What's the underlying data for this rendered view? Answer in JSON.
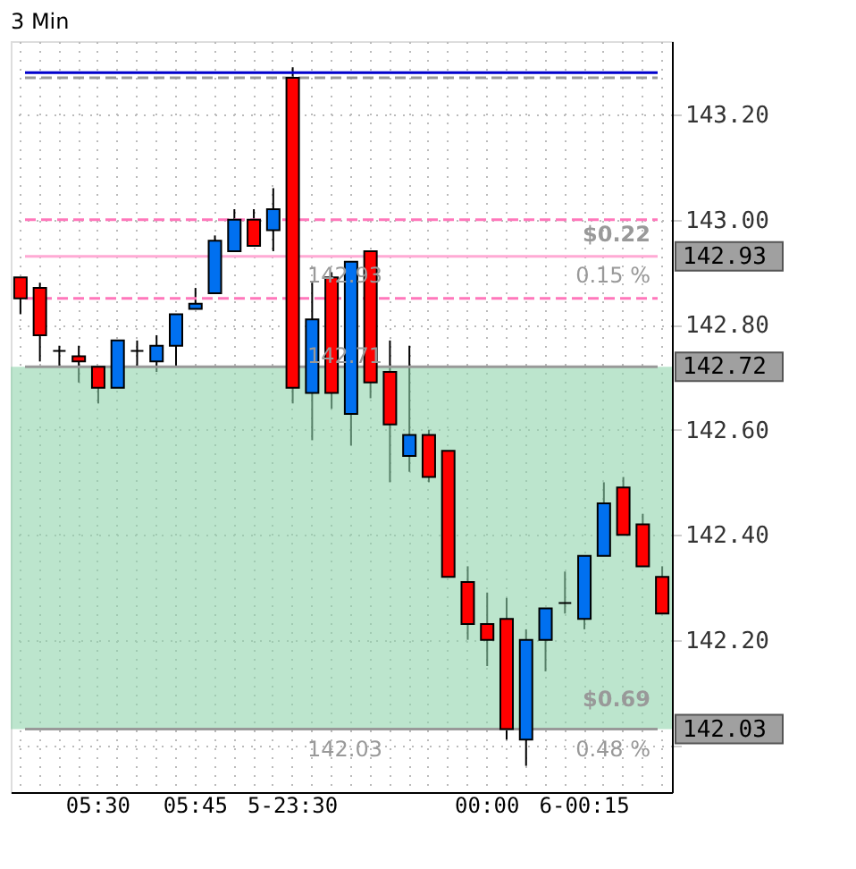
{
  "chart_data": {
    "type": "candlestick",
    "title": "3 Min",
    "categories": [
      null,
      null,
      null,
      null,
      "05:30",
      null,
      null,
      null,
      null,
      "05:45",
      null,
      null,
      null,
      null,
      "5-23:30",
      null,
      null,
      null,
      null,
      null,
      null,
      null,
      null,
      null,
      "00:00",
      null,
      null,
      null,
      null,
      "6-00:15",
      null,
      null,
      null,
      null
    ],
    "ohlc": [
      [
        142.89,
        142.89,
        142.82,
        142.85
      ],
      [
        142.87,
        142.88,
        142.73,
        142.78
      ],
      [
        142.75,
        142.76,
        142.72,
        142.75
      ],
      [
        142.74,
        142.76,
        142.69,
        142.73
      ],
      [
        142.72,
        142.72,
        142.65,
        142.68
      ],
      [
        142.68,
        142.77,
        142.68,
        142.77
      ],
      [
        142.75,
        142.77,
        142.72,
        142.75
      ],
      [
        142.73,
        142.78,
        142.71,
        142.76
      ],
      [
        142.76,
        142.82,
        142.72,
        142.82
      ],
      [
        142.83,
        142.87,
        142.83,
        142.84
      ],
      [
        142.86,
        142.97,
        142.86,
        142.96
      ],
      [
        142.94,
        143.02,
        142.94,
        143.0
      ],
      [
        143.0,
        143.02,
        142.95,
        142.95
      ],
      [
        142.98,
        143.06,
        142.94,
        143.02
      ],
      [
        143.27,
        143.29,
        142.65,
        142.68
      ],
      [
        142.67,
        142.88,
        142.58,
        142.81
      ],
      [
        142.89,
        142.9,
        142.64,
        142.67
      ],
      [
        142.63,
        142.92,
        142.57,
        142.92
      ],
      [
        142.94,
        142.94,
        142.66,
        142.69
      ],
      [
        142.71,
        142.77,
        142.5,
        142.61
      ],
      [
        142.55,
        142.76,
        142.52,
        142.59
      ],
      [
        142.59,
        142.6,
        142.5,
        142.51
      ],
      [
        142.56,
        142.56,
        142.32,
        142.32
      ],
      [
        142.31,
        142.34,
        142.2,
        142.23
      ],
      [
        142.23,
        142.29,
        142.15,
        142.2
      ],
      [
        142.24,
        142.28,
        142.01,
        142.03
      ],
      [
        142.01,
        142.22,
        141.96,
        142.2
      ],
      [
        142.2,
        142.26,
        142.14,
        142.26
      ],
      [
        142.27,
        142.33,
        142.25,
        142.27
      ],
      [
        142.24,
        142.36,
        142.22,
        142.36
      ],
      [
        142.36,
        142.5,
        142.36,
        142.46
      ],
      [
        142.49,
        142.51,
        142.4,
        142.4
      ],
      [
        142.42,
        142.44,
        142.34,
        142.34
      ],
      [
        142.32,
        142.34,
        142.25,
        142.25
      ]
    ],
    "colors": [
      "#ff0000",
      "#ff0000",
      "#000000",
      "#ff0000",
      "#ff0000",
      "#0070f0",
      "#000000",
      "#0070f0",
      "#0070f0",
      "#0070f0",
      "#0070f0",
      "#0070f0",
      "#ff0000",
      "#0070f0",
      "#ff0000",
      "#0070f0",
      "#ff0000",
      "#0070f0",
      "#ff0000",
      "#ff0000",
      "#0070f0",
      "#ff0000",
      "#ff0000",
      "#ff0000",
      "#ff0000",
      "#ff0000",
      "#0070f0",
      "#0070f0",
      "#000000",
      "#0070f0",
      "#0070f0",
      "#ff0000",
      "#ff0000",
      "#ff0000"
    ],
    "ylim": [
      141.91,
      143.34
    ],
    "yticks": [
      {
        "value": 142.0,
        "label": null
      },
      {
        "value": 142.2,
        "label": "142.20"
      },
      {
        "value": 142.4,
        "label": "142.40"
      },
      {
        "value": 142.6,
        "label": "142.60"
      },
      {
        "value": 142.8,
        "label": "142.80"
      },
      {
        "value": 143.0,
        "label": "143.00"
      },
      {
        "value": 143.2,
        "label": "143.20"
      }
    ],
    "grid": true,
    "ref_lines": [
      {
        "axis": "y",
        "value": 143.28,
        "color": "#0000cc",
        "line_style": "solid"
      },
      {
        "axis": "y",
        "value": 143.27,
        "color": "#999999",
        "line_style": "dashed"
      },
      {
        "axis": "y",
        "value": 143.0,
        "color": "#ff77bb",
        "line_style": "dashed"
      },
      {
        "axis": "y",
        "value": 142.93,
        "label": "142.93",
        "color": "#ffaad4",
        "line_style": "solid"
      },
      {
        "axis": "y",
        "value": 142.85,
        "color": "#ff77bb",
        "line_style": "dashed"
      },
      {
        "axis": "y",
        "value": 142.72,
        "label": "142.72",
        "color": "#999999",
        "line_style": "solid"
      },
      {
        "axis": "y",
        "value": 142.03,
        "label": "142.03",
        "color": "#999999",
        "line_style": "solid"
      }
    ],
    "bands": [
      {
        "axis": "y",
        "from": 142.03,
        "to": 142.72,
        "color": "#8fd4ac"
      }
    ],
    "annotations": [
      "$0.22",
      "0.15 %",
      "$0.69",
      "0.48 %",
      "142.93",
      "142.71",
      "142.03"
    ]
  }
}
